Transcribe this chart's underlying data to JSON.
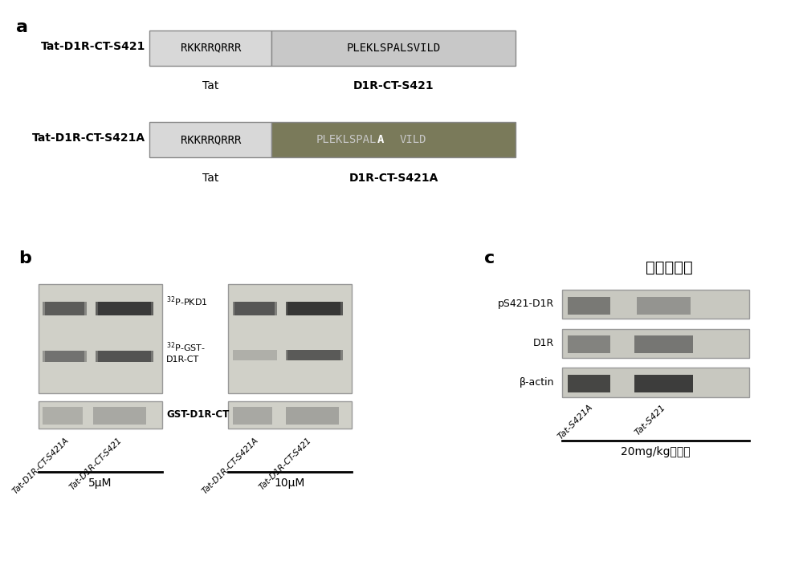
{
  "panel_a": {
    "label": "a",
    "row1_label": "Tat-D1R-CT-S421",
    "row1_box1_text": "RKKRRQRRR",
    "row1_box2_text": "PLEKLSPALSVILD",
    "row1_sub1": "Tat",
    "row1_sub2": "D1R-CT-S421",
    "row2_label": "Tat-D1R-CT-S421A",
    "row2_box1_text": "RKKRRQRRR",
    "row2_box2_text": "PLEKLSPALA VILD",
    "row2_box2_highlight": "A",
    "row2_sub1": "Tat",
    "row2_sub2": "D1R-CT-S421A",
    "box1_color": "#d8d8d8",
    "box2_light_color": "#c8c8c8",
    "box2_dark_color": "#7a7a5a",
    "box_border": "#888888"
  },
  "panel_b": {
    "label": "b",
    "label1": "$^{32}$P-PKD1",
    "label2": "$^{32}$P-GST-\nD1R-CT",
    "label3": "GST-D1R-CT",
    "xticklabels_left": [
      "Tat-D1R-CT-S421A",
      "Tat-D1R-CT-S421"
    ],
    "xticklabels_right": [
      "Tat-D1R-CT-S421A",
      "Tat-D1R-CT-S421"
    ],
    "conc_left": "5μM",
    "conc_right": "10μM"
  },
  "panel_c": {
    "label": "c",
    "title": "干扰肽注射",
    "label1": "pS421-D1R",
    "label2": "D1R",
    "label3": "β-actin",
    "xticklabels": [
      "Tat-S421A",
      "Tat-S421"
    ],
    "bottom_label": "20mg/kg可卡因"
  },
  "bg_color": "#ffffff",
  "text_color": "#000000"
}
